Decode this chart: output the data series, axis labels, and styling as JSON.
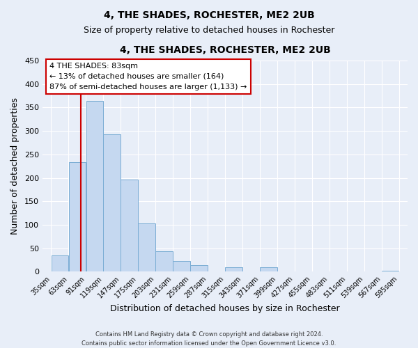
{
  "title": "4, THE SHADES, ROCHESTER, ME2 2UB",
  "subtitle": "Size of property relative to detached houses in Rochester",
  "xlabel": "Distribution of detached houses by size in Rochester",
  "ylabel": "Number of detached properties",
  "bar_color": "#c5d8f0",
  "bar_edge_color": "#7aadd4",
  "background_color": "#e8eef8",
  "grid_color": "#ffffff",
  "bins": [
    35,
    63,
    91,
    119,
    147,
    175,
    203,
    231,
    259,
    287,
    315,
    343,
    371,
    399,
    427,
    455,
    483,
    511,
    539,
    567,
    595
  ],
  "values": [
    35,
    234,
    364,
    293,
    196,
    103,
    44,
    22,
    14,
    0,
    10,
    0,
    9,
    0,
    0,
    0,
    0,
    0,
    0,
    2
  ],
  "tick_labels": [
    "35sqm",
    "63sqm",
    "91sqm",
    "119sqm",
    "147sqm",
    "175sqm",
    "203sqm",
    "231sqm",
    "259sqm",
    "287sqm",
    "315sqm",
    "343sqm",
    "371sqm",
    "399sqm",
    "427sqm",
    "455sqm",
    "483sqm",
    "511sqm",
    "539sqm",
    "567sqm",
    "595sqm"
  ],
  "ylim": [
    0,
    450
  ],
  "yticks": [
    0,
    50,
    100,
    150,
    200,
    250,
    300,
    350,
    400,
    450
  ],
  "property_line_x": 83,
  "property_line_color": "#cc0000",
  "annotation_title": "4 THE SHADES: 83sqm",
  "annotation_line1": "← 13% of detached houses are smaller (164)",
  "annotation_line2": "87% of semi-detached houses are larger (1,133) →",
  "annotation_box_color": "#ffffff",
  "annotation_box_edge": "#cc0000",
  "footer_line1": "Contains HM Land Registry data © Crown copyright and database right 2024.",
  "footer_line2": "Contains public sector information licensed under the Open Government Licence v3.0."
}
